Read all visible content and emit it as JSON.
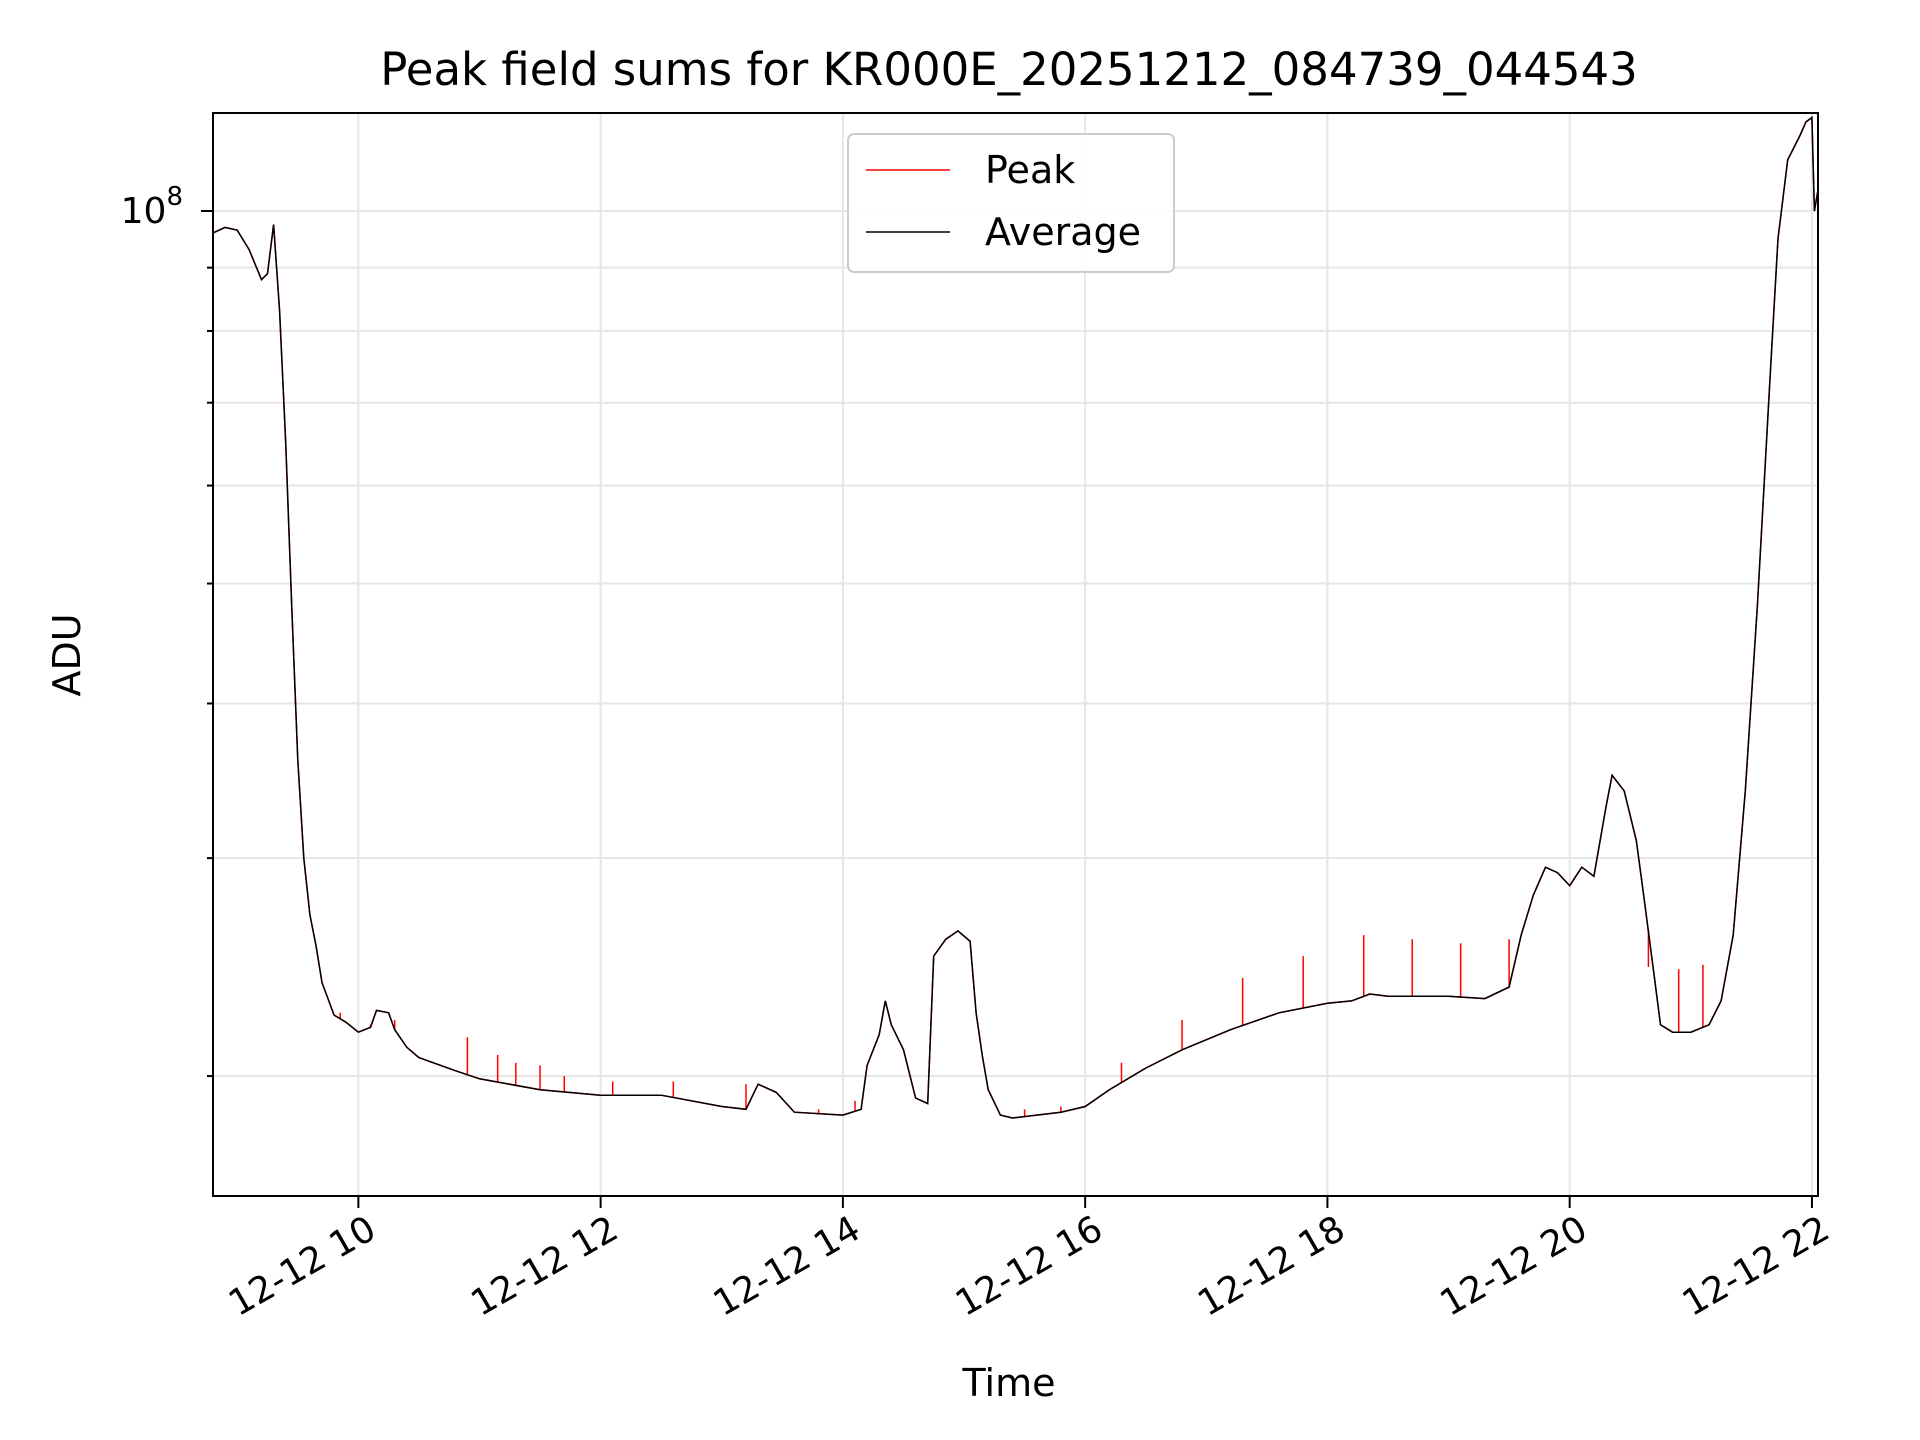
{
  "chart_data": {
    "type": "line",
    "title": "Peak field sums for KR000E_20251212_084739_044543",
    "xlabel": "Time",
    "ylabel": "ADU",
    "y_scale": "log",
    "y_tick_label": {
      "base": "10",
      "exp": "8"
    },
    "xlim": [
      8.8,
      22.05
    ],
    "ylim": [
      16000000,
      120000000
    ],
    "grid": true,
    "legend_position": "top-center",
    "x_tick_labels": [
      {
        "x": 10,
        "label": "12-12 10"
      },
      {
        "x": 12,
        "label": "12-12 12"
      },
      {
        "x": 14,
        "label": "12-12 14"
      },
      {
        "x": 16,
        "label": "12-12 16"
      },
      {
        "x": 18,
        "label": "12-12 18"
      },
      {
        "x": 20,
        "label": "12-12 20"
      },
      {
        "x": 22,
        "label": "12-12 22"
      }
    ],
    "series": [
      {
        "name": "Peak",
        "color": "#ff0000",
        "note": "Average plus upward spikes",
        "spikes": [
          [
            9.85,
            22500000
          ],
          [
            10.1,
            22000000
          ],
          [
            10.3,
            22200000
          ],
          [
            10.6,
            20500000
          ],
          [
            10.9,
            21500000
          ],
          [
            11.15,
            20800000
          ],
          [
            11.3,
            20500000
          ],
          [
            11.5,
            20400000
          ],
          [
            11.7,
            20000000
          ],
          [
            12.1,
            19800000
          ],
          [
            12.6,
            19800000
          ],
          [
            13.2,
            19700000
          ],
          [
            13.8,
            18800000
          ],
          [
            14.1,
            19100000
          ],
          [
            15.5,
            18800000
          ],
          [
            15.8,
            18900000
          ],
          [
            16.3,
            20500000
          ],
          [
            16.8,
            22200000
          ],
          [
            17.3,
            24000000
          ],
          [
            17.8,
            25000000
          ],
          [
            18.3,
            26000000
          ],
          [
            18.7,
            25800000
          ],
          [
            19.1,
            25600000
          ],
          [
            19.5,
            25800000
          ],
          [
            20.65,
            24500000
          ],
          [
            20.9,
            24400000
          ],
          [
            21.1,
            24600000
          ]
        ],
        "points": [
          [
            8.8,
            96000000
          ],
          [
            8.9,
            97000000
          ],
          [
            9.0,
            96500000
          ],
          [
            9.1,
            93000000
          ],
          [
            9.2,
            88000000
          ],
          [
            9.25,
            89000000
          ],
          [
            9.3,
            97500000
          ],
          [
            9.35,
            83000000
          ],
          [
            9.4,
            65000000
          ],
          [
            9.45,
            48000000
          ],
          [
            9.5,
            36000000
          ],
          [
            9.55,
            30000000
          ],
          [
            9.6,
            27000000
          ],
          [
            9.65,
            25500000
          ],
          [
            9.7,
            23800000
          ],
          [
            9.8,
            22400000
          ],
          [
            9.9,
            22100000
          ],
          [
            10.0,
            21700000
          ],
          [
            10.1,
            21900000
          ],
          [
            10.15,
            22600000
          ],
          [
            10.25,
            22500000
          ],
          [
            10.3,
            21800000
          ],
          [
            10.4,
            21100000
          ],
          [
            10.5,
            20700000
          ],
          [
            10.8,
            20200000
          ],
          [
            11.0,
            19900000
          ],
          [
            11.5,
            19500000
          ],
          [
            12.0,
            19300000
          ],
          [
            12.5,
            19300000
          ],
          [
            13.0,
            18900000
          ],
          [
            13.2,
            18800000
          ],
          [
            13.3,
            19700000
          ],
          [
            13.45,
            19400000
          ],
          [
            13.6,
            18700000
          ],
          [
            14.0,
            18600000
          ],
          [
            14.15,
            18800000
          ],
          [
            14.2,
            20400000
          ],
          [
            14.3,
            21600000
          ],
          [
            14.35,
            23000000
          ],
          [
            14.4,
            22000000
          ],
          [
            14.5,
            21000000
          ],
          [
            14.6,
            19200000
          ],
          [
            14.7,
            19000000
          ],
          [
            14.75,
            25000000
          ],
          [
            14.85,
            25800000
          ],
          [
            14.95,
            26200000
          ],
          [
            15.05,
            25700000
          ],
          [
            15.1,
            22500000
          ],
          [
            15.15,
            20800000
          ],
          [
            15.2,
            19500000
          ],
          [
            15.3,
            18600000
          ],
          [
            15.4,
            18500000
          ],
          [
            15.6,
            18600000
          ],
          [
            15.8,
            18700000
          ],
          [
            16.0,
            18900000
          ],
          [
            16.2,
            19500000
          ],
          [
            16.5,
            20300000
          ],
          [
            16.8,
            21000000
          ],
          [
            17.2,
            21800000
          ],
          [
            17.6,
            22500000
          ],
          [
            18.0,
            22900000
          ],
          [
            18.2,
            23000000
          ],
          [
            18.35,
            23300000
          ],
          [
            18.5,
            23200000
          ],
          [
            18.8,
            23200000
          ],
          [
            19.0,
            23200000
          ],
          [
            19.3,
            23100000
          ],
          [
            19.5,
            23600000
          ],
          [
            19.6,
            26000000
          ],
          [
            19.7,
            28000000
          ],
          [
            19.8,
            29500000
          ],
          [
            19.9,
            29200000
          ],
          [
            20.0,
            28500000
          ],
          [
            20.1,
            29500000
          ],
          [
            20.2,
            29000000
          ],
          [
            20.3,
            33000000
          ],
          [
            20.35,
            35000000
          ],
          [
            20.45,
            34000000
          ],
          [
            20.55,
            31000000
          ],
          [
            20.6,
            28500000
          ],
          [
            20.7,
            24000000
          ],
          [
            20.75,
            22000000
          ],
          [
            20.85,
            21700000
          ],
          [
            21.0,
            21700000
          ],
          [
            21.15,
            22000000
          ],
          [
            21.25,
            23000000
          ],
          [
            21.35,
            26000000
          ],
          [
            21.45,
            34000000
          ],
          [
            21.55,
            48000000
          ],
          [
            21.65,
            72000000
          ],
          [
            21.72,
            95000000
          ],
          [
            21.8,
            110000000
          ],
          [
            21.9,
            115000000
          ],
          [
            21.95,
            118000000
          ],
          [
            22.0,
            119000000
          ],
          [
            22.02,
            100000000
          ],
          [
            22.05,
            104000000
          ]
        ]
      },
      {
        "name": "Average",
        "color": "#000000",
        "points": [
          [
            8.8,
            96000000
          ],
          [
            8.9,
            97000000
          ],
          [
            9.0,
            96500000
          ],
          [
            9.1,
            93000000
          ],
          [
            9.2,
            88000000
          ],
          [
            9.25,
            89000000
          ],
          [
            9.3,
            97500000
          ],
          [
            9.35,
            83000000
          ],
          [
            9.4,
            65000000
          ],
          [
            9.45,
            48000000
          ],
          [
            9.5,
            36000000
          ],
          [
            9.55,
            30000000
          ],
          [
            9.6,
            27000000
          ],
          [
            9.65,
            25500000
          ],
          [
            9.7,
            23800000
          ],
          [
            9.8,
            22400000
          ],
          [
            9.9,
            22100000
          ],
          [
            10.0,
            21700000
          ],
          [
            10.1,
            21900000
          ],
          [
            10.15,
            22600000
          ],
          [
            10.25,
            22500000
          ],
          [
            10.3,
            21800000
          ],
          [
            10.4,
            21100000
          ],
          [
            10.5,
            20700000
          ],
          [
            10.8,
            20200000
          ],
          [
            11.0,
            19900000
          ],
          [
            11.5,
            19500000
          ],
          [
            12.0,
            19300000
          ],
          [
            12.5,
            19300000
          ],
          [
            13.0,
            18900000
          ],
          [
            13.2,
            18800000
          ],
          [
            13.3,
            19700000
          ],
          [
            13.45,
            19400000
          ],
          [
            13.6,
            18700000
          ],
          [
            14.0,
            18600000
          ],
          [
            14.15,
            18800000
          ],
          [
            14.2,
            20400000
          ],
          [
            14.3,
            21600000
          ],
          [
            14.35,
            23000000
          ],
          [
            14.4,
            22000000
          ],
          [
            14.5,
            21000000
          ],
          [
            14.6,
            19200000
          ],
          [
            14.7,
            19000000
          ],
          [
            14.75,
            25000000
          ],
          [
            14.85,
            25800000
          ],
          [
            14.95,
            26200000
          ],
          [
            15.05,
            25700000
          ],
          [
            15.1,
            22500000
          ],
          [
            15.15,
            20800000
          ],
          [
            15.2,
            19500000
          ],
          [
            15.3,
            18600000
          ],
          [
            15.4,
            18500000
          ],
          [
            15.6,
            18600000
          ],
          [
            15.8,
            18700000
          ],
          [
            16.0,
            18900000
          ],
          [
            16.2,
            19500000
          ],
          [
            16.5,
            20300000
          ],
          [
            16.8,
            21000000
          ],
          [
            17.2,
            21800000
          ],
          [
            17.6,
            22500000
          ],
          [
            18.0,
            22900000
          ],
          [
            18.2,
            23000000
          ],
          [
            18.35,
            23300000
          ],
          [
            18.5,
            23200000
          ],
          [
            18.8,
            23200000
          ],
          [
            19.0,
            23200000
          ],
          [
            19.3,
            23100000
          ],
          [
            19.5,
            23600000
          ],
          [
            19.6,
            26000000
          ],
          [
            19.7,
            28000000
          ],
          [
            19.8,
            29500000
          ],
          [
            19.9,
            29200000
          ],
          [
            20.0,
            28500000
          ],
          [
            20.1,
            29500000
          ],
          [
            20.2,
            29000000
          ],
          [
            20.3,
            33000000
          ],
          [
            20.35,
            35000000
          ],
          [
            20.45,
            34000000
          ],
          [
            20.55,
            31000000
          ],
          [
            20.6,
            28500000
          ],
          [
            20.7,
            24000000
          ],
          [
            20.75,
            22000000
          ],
          [
            20.85,
            21700000
          ],
          [
            21.0,
            21700000
          ],
          [
            21.15,
            22000000
          ],
          [
            21.25,
            23000000
          ],
          [
            21.35,
            26000000
          ],
          [
            21.45,
            34000000
          ],
          [
            21.55,
            48000000
          ],
          [
            21.65,
            72000000
          ],
          [
            21.72,
            95000000
          ],
          [
            21.8,
            110000000
          ],
          [
            21.9,
            115000000
          ],
          [
            21.95,
            118000000
          ],
          [
            22.0,
            119000000
          ],
          [
            22.02,
            100000000
          ],
          [
            22.05,
            104000000
          ]
        ]
      }
    ]
  }
}
